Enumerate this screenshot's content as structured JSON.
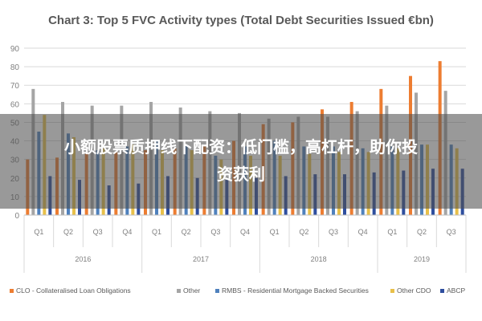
{
  "chart_data": {
    "type": "bar",
    "title": "Chart 3: Top 5 FVC Activity types (Total Debt Securities Issued €bn)",
    "xlabel": "",
    "ylabel": "",
    "ylim": [
      0,
      90
    ],
    "yticks": [
      0,
      10,
      20,
      30,
      40,
      50,
      60,
      70,
      80,
      90
    ],
    "grid": true,
    "legend_position": "bottom",
    "years": [
      {
        "label": "2016",
        "quarters": 4
      },
      {
        "label": "2017",
        "quarters": 4
      },
      {
        "label": "2018",
        "quarters": 4
      },
      {
        "label": "2019",
        "quarters": 3
      }
    ],
    "categories": [
      "Q1",
      "Q2",
      "Q3",
      "Q4",
      "Q1",
      "Q2",
      "Q3",
      "Q4",
      "Q1",
      "Q2",
      "Q3",
      "Q4",
      "Q1",
      "Q2",
      "Q3"
    ],
    "series": [
      {
        "name": "CLO - Collateralised Loan Obligations",
        "color": "#ED7D31",
        "values": [
          30,
          31,
          33,
          34,
          35,
          36,
          37,
          40,
          49,
          50,
          57,
          61,
          68,
          75,
          83
        ]
      },
      {
        "name": "Other",
        "color": "#A5A5A5",
        "values": [
          68,
          61,
          59,
          59,
          61,
          58,
          56,
          55,
          52,
          53,
          53,
          56,
          59,
          66,
          67
        ]
      },
      {
        "name": "RMBS - Residential Mortgage Backed Securities",
        "color": "#4F81BD",
        "values": [
          45,
          44,
          35,
          37,
          40,
          38,
          32,
          37,
          40,
          37,
          37,
          36,
          37,
          38,
          38
        ]
      },
      {
        "name": "Other CDO",
        "color": "#E8C04A",
        "values": [
          54,
          42,
          36,
          38,
          35,
          35,
          30,
          32,
          32,
          33,
          34,
          34,
          36,
          38,
          36
        ]
      },
      {
        "name": "ABCP",
        "color": "#2E4E9E",
        "values": [
          21,
          19,
          16,
          17,
          21,
          20,
          19,
          20,
          21,
          22,
          22,
          23,
          24,
          25,
          25
        ]
      }
    ]
  },
  "overlay": {
    "line1": "小额股票质押线下配资：低门槛，高杠杆，助你投",
    "line2": "资获利"
  }
}
